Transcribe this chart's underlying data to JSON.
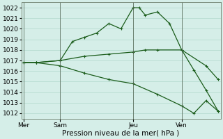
{
  "background_color": "#d5eee8",
  "grid_color": "#b0d8cc",
  "line_color": "#1a5c1a",
  "title": "Pression niveau de la mer( hPa )",
  "x_ticks_labels": [
    "Mer",
    "Sam",
    "Jeu",
    "Ven"
  ],
  "x_ticks_pos": [
    0,
    3,
    9,
    13
  ],
  "ylim": [
    1011.5,
    1022.5
  ],
  "yticks": [
    1012,
    1013,
    1014,
    1015,
    1016,
    1017,
    1018,
    1019,
    1020,
    1021,
    1022
  ],
  "vlines": [
    0,
    3,
    9,
    13
  ],
  "xlim": [
    -0.2,
    16.2
  ],
  "series1": {
    "x": [
      0,
      1,
      3,
      4,
      5,
      6,
      7,
      8,
      9,
      9.5,
      10,
      11,
      12,
      13,
      14,
      15,
      16
    ],
    "y": [
      1016.8,
      1016.8,
      1017.0,
      1018.8,
      1019.2,
      1019.6,
      1020.5,
      1020.0,
      1022.0,
      1022.0,
      1021.3,
      1021.6,
      1020.5,
      1018.0,
      1016.1,
      1014.2,
      1012.2
    ]
  },
  "series2": {
    "x": [
      0,
      1,
      3,
      5,
      7,
      9,
      10,
      11,
      13,
      15,
      16
    ],
    "y": [
      1016.8,
      1016.8,
      1017.0,
      1017.4,
      1017.6,
      1017.8,
      1018.0,
      1018.0,
      1018.0,
      1016.5,
      1015.2
    ]
  },
  "series3": {
    "x": [
      0,
      1,
      3,
      5,
      7,
      9,
      11,
      13,
      14,
      15,
      16
    ],
    "y": [
      1016.8,
      1016.8,
      1016.5,
      1015.8,
      1015.2,
      1014.8,
      1013.8,
      1012.7,
      1012.0,
      1013.2,
      1012.2
    ]
  }
}
